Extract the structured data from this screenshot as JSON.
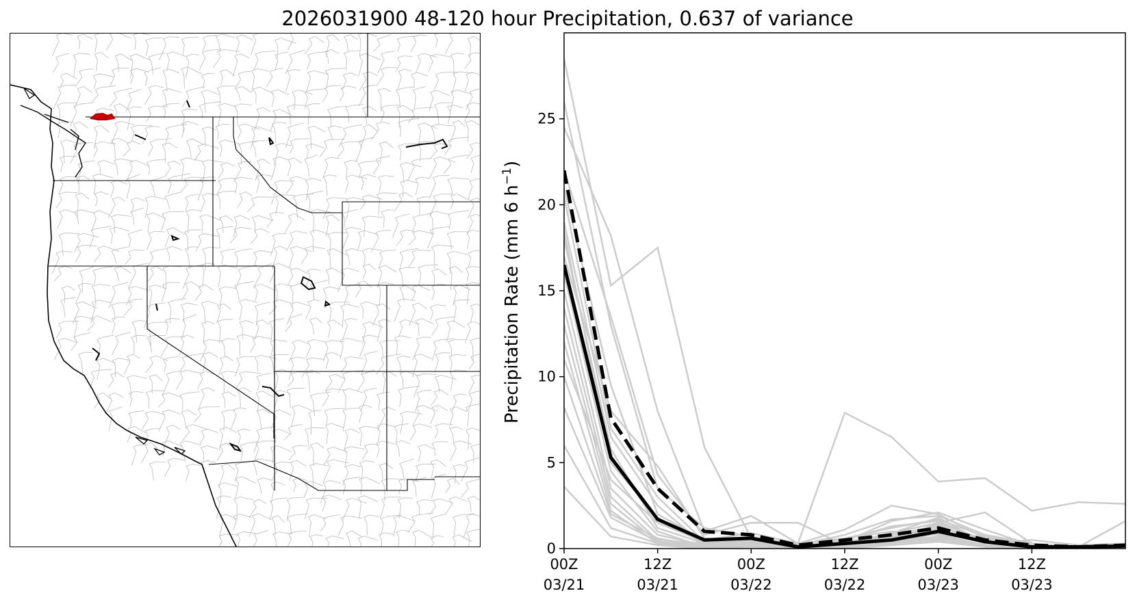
{
  "title": "2026031900 48-120 hour Precipitation, 0.637 of variance",
  "colors": {
    "ensemble": "#cccccc",
    "mean": "#000000",
    "basin_border": "#c0c0c0",
    "highlight_basin": "#cc0000"
  },
  "map": {
    "description_icon": "western-us-basin-map"
  },
  "chart_data": {
    "type": "line",
    "title": "",
    "xlabel": "",
    "ylabel": "Precipitation Rate (mm 6 h",
    "ylabel_sup": "−1",
    "ylabel_end": ")",
    "xlim": [
      0,
      72
    ],
    "ylim": [
      0,
      30
    ],
    "yticks": [
      0,
      5,
      10,
      15,
      20,
      25
    ],
    "xticks": [
      {
        "x": 0,
        "line1": "00Z",
        "line2": "03/21"
      },
      {
        "x": 12,
        "line1": "12Z",
        "line2": "03/21"
      },
      {
        "x": 24,
        "line1": "00Z",
        "line2": "03/22"
      },
      {
        "x": 36,
        "line1": "12Z",
        "line2": "03/22"
      },
      {
        "x": 48,
        "line1": "00Z",
        "line2": "03/23"
      },
      {
        "x": 60,
        "line1": "12Z",
        "line2": "03/23"
      }
    ],
    "x": [
      0,
      6,
      12,
      18,
      24,
      30,
      36,
      42,
      48,
      54,
      60,
      66,
      72
    ],
    "series": [
      {
        "name": "mean-solid",
        "style": "solid",
        "values": [
          16.5,
          5.3,
          1.7,
          0.5,
          0.6,
          0.1,
          0.3,
          0.5,
          1.0,
          0.4,
          0.1,
          0.1,
          0.15
        ]
      },
      {
        "name": "mean-dashed",
        "style": "dashed",
        "values": [
          22.0,
          7.6,
          3.5,
          1.0,
          0.8,
          0.2,
          0.5,
          0.8,
          1.2,
          0.5,
          0.2,
          0.1,
          0.2
        ]
      }
    ],
    "ensemble": [
      [
        28.5,
        15.3,
        17.5,
        5.9,
        0.6,
        0.3,
        7.9,
        6.5,
        3.9,
        4.1,
        2.2,
        2.7,
        2.6
      ],
      [
        24.5,
        18.2,
        8.0,
        1.0,
        1.9,
        0.3,
        1.1,
        2.5,
        2.0,
        0.6,
        0.2,
        0.1,
        0.1
      ],
      [
        22.0,
        13.5,
        4.3,
        0.8,
        1.5,
        1.5,
        0.2,
        0.4,
        1.5,
        2.1,
        0.3,
        0.1,
        1.6
      ],
      [
        20.5,
        7.0,
        3.0,
        0.4,
        0.5,
        0.2,
        0.3,
        0.9,
        1.8,
        0.3,
        0.5,
        0.2,
        0.3
      ],
      [
        19.0,
        6.5,
        2.5,
        0.2,
        0.4,
        0.1,
        0.5,
        1.3,
        1.6,
        0.4,
        0.3,
        0.1,
        0.2
      ],
      [
        18.0,
        5.8,
        1.2,
        0.3,
        0.2,
        0.0,
        0.1,
        0.5,
        1.2,
        0.6,
        0.1,
        0.0,
        0.1
      ],
      [
        17.0,
        8.0,
        4.8,
        0.6,
        0.3,
        0.2,
        0.4,
        1.6,
        2.1,
        1.1,
        0.2,
        0.1,
        0.0
      ],
      [
        16.0,
        4.5,
        1.0,
        0.1,
        0.5,
        0.1,
        0.6,
        1.0,
        0.8,
        0.2,
        0.0,
        0.0,
        0.1
      ],
      [
        15.0,
        3.5,
        0.8,
        0.2,
        0.3,
        0.1,
        0.2,
        0.6,
        1.4,
        0.3,
        0.1,
        0.0,
        0.0
      ],
      [
        14.0,
        3.0,
        0.5,
        0.3,
        0.6,
        0.2,
        0.3,
        0.7,
        1.0,
        0.5,
        0.2,
        0.1,
        0.1
      ],
      [
        13.0,
        2.6,
        0.4,
        0.1,
        0.2,
        0.0,
        0.1,
        0.4,
        0.7,
        0.2,
        0.0,
        0.0,
        0.0
      ],
      [
        12.0,
        2.2,
        0.3,
        0.2,
        0.4,
        0.1,
        0.2,
        0.3,
        0.9,
        0.1,
        0.1,
        0.0,
        0.0
      ],
      [
        11.0,
        4.0,
        1.5,
        0.4,
        0.3,
        0.1,
        0.4,
        0.8,
        1.3,
        0.4,
        0.1,
        0.0,
        0.1
      ],
      [
        10.0,
        2.0,
        0.6,
        0.1,
        0.1,
        0.0,
        0.1,
        0.2,
        0.5,
        0.1,
        0.0,
        0.0,
        0.0
      ],
      [
        8.2,
        1.8,
        0.4,
        0.2,
        0.5,
        0.1,
        0.3,
        0.5,
        1.1,
        0.3,
        0.1,
        0.0,
        0.0
      ],
      [
        6.0,
        1.2,
        0.3,
        0.1,
        0.2,
        0.0,
        0.1,
        0.3,
        0.6,
        0.2,
        0.0,
        0.0,
        0.0
      ],
      [
        3.6,
        0.7,
        0.2,
        0.0,
        0.1,
        0.0,
        0.0,
        0.2,
        0.4,
        0.1,
        0.0,
        0.0,
        0.0
      ],
      [
        26.0,
        13.0,
        3.5,
        1.2,
        0.7,
        0.2,
        0.8,
        1.7,
        1.9,
        0.8,
        0.3,
        0.1,
        0.2
      ],
      [
        21.0,
        9.5,
        2.0,
        0.5,
        0.9,
        0.3,
        0.6,
        1.2,
        1.7,
        0.7,
        0.2,
        0.1,
        0.1
      ],
      [
        18.5,
        5.0,
        1.8,
        0.3,
        0.6,
        0.2,
        0.2,
        0.9,
        1.5,
        0.5,
        0.1,
        0.0,
        0.1
      ]
    ]
  }
}
